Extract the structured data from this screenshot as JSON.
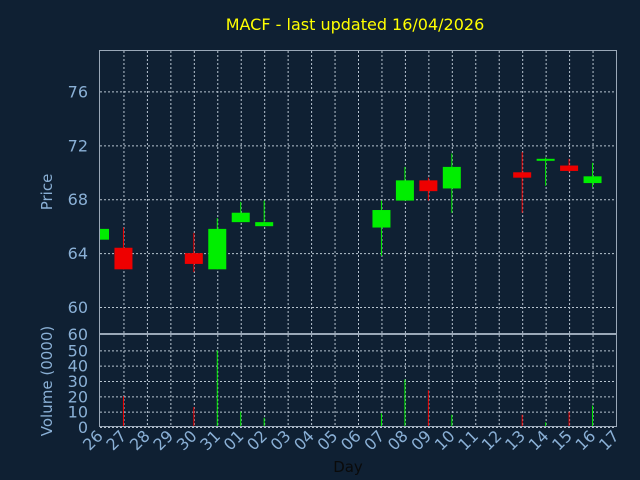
{
  "colors": {
    "background": "#0f2033",
    "title": "#ffff00",
    "axis_text": "#8ab0d6",
    "up": "#00ee00",
    "down": "#ee0000",
    "grid": "#b8c4d0",
    "frame": "#9aa8b8",
    "xlabel": "#0a0a0a"
  },
  "chart_data": [
    {
      "type": "candlestick",
      "title": "MACF - last updated 16/04/2026",
      "ylabel": "Price",
      "ylim": [
        58,
        79
      ],
      "yticks": [
        60,
        64,
        68,
        72,
        76
      ],
      "grid": true,
      "categories": [
        "26",
        "27",
        "28",
        "29",
        "30",
        "31",
        "01",
        "02",
        "03",
        "04",
        "05",
        "06",
        "07",
        "08",
        "09",
        "10",
        "11",
        "12",
        "13",
        "14",
        "15",
        "16",
        "17"
      ],
      "candles": [
        {
          "x": "26",
          "open": 65.0,
          "close": 65.8,
          "high": 65.8,
          "low": 65.0
        },
        {
          "x": "27",
          "open": 64.4,
          "close": 62.8,
          "high": 65.9,
          "low": 62.8
        },
        {
          "x": "30",
          "open": 64.0,
          "close": 63.2,
          "high": 65.5,
          "low": 62.6
        },
        {
          "x": "31",
          "open": 62.8,
          "close": 65.8,
          "high": 66.6,
          "low": 62.8
        },
        {
          "x": "01",
          "open": 66.3,
          "close": 67.0,
          "high": 67.8,
          "low": 66.3
        },
        {
          "x": "02",
          "open": 66.0,
          "close": 66.3,
          "high": 67.9,
          "low": 66.0
        },
        {
          "x": "07",
          "open": 65.9,
          "close": 67.2,
          "high": 67.9,
          "low": 63.8
        },
        {
          "x": "08",
          "open": 67.9,
          "close": 69.4,
          "high": 70.4,
          "low": 67.9
        },
        {
          "x": "09",
          "open": 69.4,
          "close": 68.6,
          "high": 69.6,
          "low": 67.9
        },
        {
          "x": "10",
          "open": 68.8,
          "close": 70.4,
          "high": 71.4,
          "low": 67.0
        },
        {
          "x": "13",
          "open": 70.0,
          "close": 69.6,
          "high": 71.5,
          "low": 67.0
        },
        {
          "x": "14",
          "open": 70.9,
          "close": 71.0,
          "high": 71.1,
          "low": 69.0
        },
        {
          "x": "15",
          "open": 70.5,
          "close": 70.1,
          "high": 71.0,
          "low": 70.0
        },
        {
          "x": "16",
          "open": 69.2,
          "close": 69.7,
          "high": 70.7,
          "low": 68.9
        }
      ]
    },
    {
      "type": "bar",
      "ylabel": "Volume (0000)",
      "xlabel": "Day",
      "ylim": [
        0,
        60
      ],
      "yticks": [
        0,
        10,
        20,
        30,
        40,
        50,
        60
      ],
      "grid": true,
      "categories": [
        "26",
        "27",
        "28",
        "29",
        "30",
        "31",
        "01",
        "02",
        "03",
        "04",
        "05",
        "06",
        "07",
        "08",
        "09",
        "10",
        "11",
        "12",
        "13",
        "14",
        "15",
        "16",
        "17"
      ],
      "bars": [
        {
          "x": "27",
          "value": 20,
          "direction": "down"
        },
        {
          "x": "30",
          "value": 13,
          "direction": "down"
        },
        {
          "x": "31",
          "value": 50,
          "direction": "up"
        },
        {
          "x": "01",
          "value": 10,
          "direction": "up"
        },
        {
          "x": "02",
          "value": 6,
          "direction": "up"
        },
        {
          "x": "07",
          "value": 9,
          "direction": "up"
        },
        {
          "x": "08",
          "value": 31,
          "direction": "up"
        },
        {
          "x": "09",
          "value": 24,
          "direction": "down"
        },
        {
          "x": "10",
          "value": 8,
          "direction": "up"
        },
        {
          "x": "13",
          "value": 8,
          "direction": "down"
        },
        {
          "x": "14",
          "value": 3,
          "direction": "up"
        },
        {
          "x": "15",
          "value": 10,
          "direction": "down"
        },
        {
          "x": "16",
          "value": 14,
          "direction": "up"
        }
      ]
    }
  ]
}
